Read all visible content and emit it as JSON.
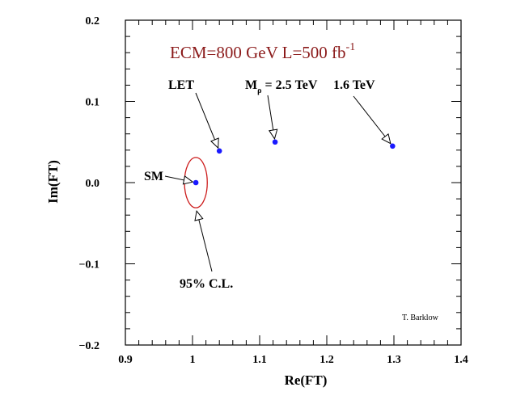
{
  "chart_data": {
    "type": "scatter",
    "title": "ECM=800 GeV  L=500 fb",
    "title_superscript": "-1",
    "title_color": "#8b1a1a",
    "xlabel": "Re(FT)",
    "ylabel": "Im(FT)",
    "xlim": [
      0.9,
      1.4
    ],
    "ylim": [
      -0.2,
      0.2
    ],
    "x_ticks": [
      {
        "value": 0.9,
        "label": "0.9"
      },
      {
        "value": 1.0,
        "label": "1"
      },
      {
        "value": 1.1,
        "label": "1.1"
      },
      {
        "value": 1.2,
        "label": "1.2"
      },
      {
        "value": 1.3,
        "label": "1.3"
      },
      {
        "value": 1.4,
        "label": "1.4"
      }
    ],
    "y_ticks": [
      {
        "value": -0.2,
        "label": "−0.2"
      },
      {
        "value": -0.1,
        "label": "−0.1"
      },
      {
        "value": 0.0,
        "label": "0.0"
      },
      {
        "value": 0.1,
        "label": "0.1"
      },
      {
        "value": 0.2,
        "label": "0.2"
      }
    ],
    "grid": false,
    "point_color": "#1a1aff",
    "points": [
      {
        "label": "SM",
        "x": 1.005,
        "y": 0.0
      },
      {
        "label": "LET",
        "x": 1.04,
        "y": 0.039
      },
      {
        "label": "Mρ = 2.5 TeV",
        "x": 1.123,
        "y": 0.05
      },
      {
        "label": "1.6 TeV",
        "x": 1.298,
        "y": 0.045
      }
    ],
    "annotations": {
      "sm": "SM",
      "let": "LET",
      "m_rho_main": "M",
      "m_rho_sub": "ρ",
      "m_rho_value": "= 2.5 TeV",
      "tev16": "1.6 TeV",
      "cl": "95% C.L.",
      "credit": "T. Barklow"
    },
    "ellipse": {
      "label": "95% C.L.",
      "center_x": 1.005,
      "center_y": 0.0,
      "half_width": 0.017,
      "half_height": 0.031,
      "color": "#cc1a1a"
    }
  }
}
